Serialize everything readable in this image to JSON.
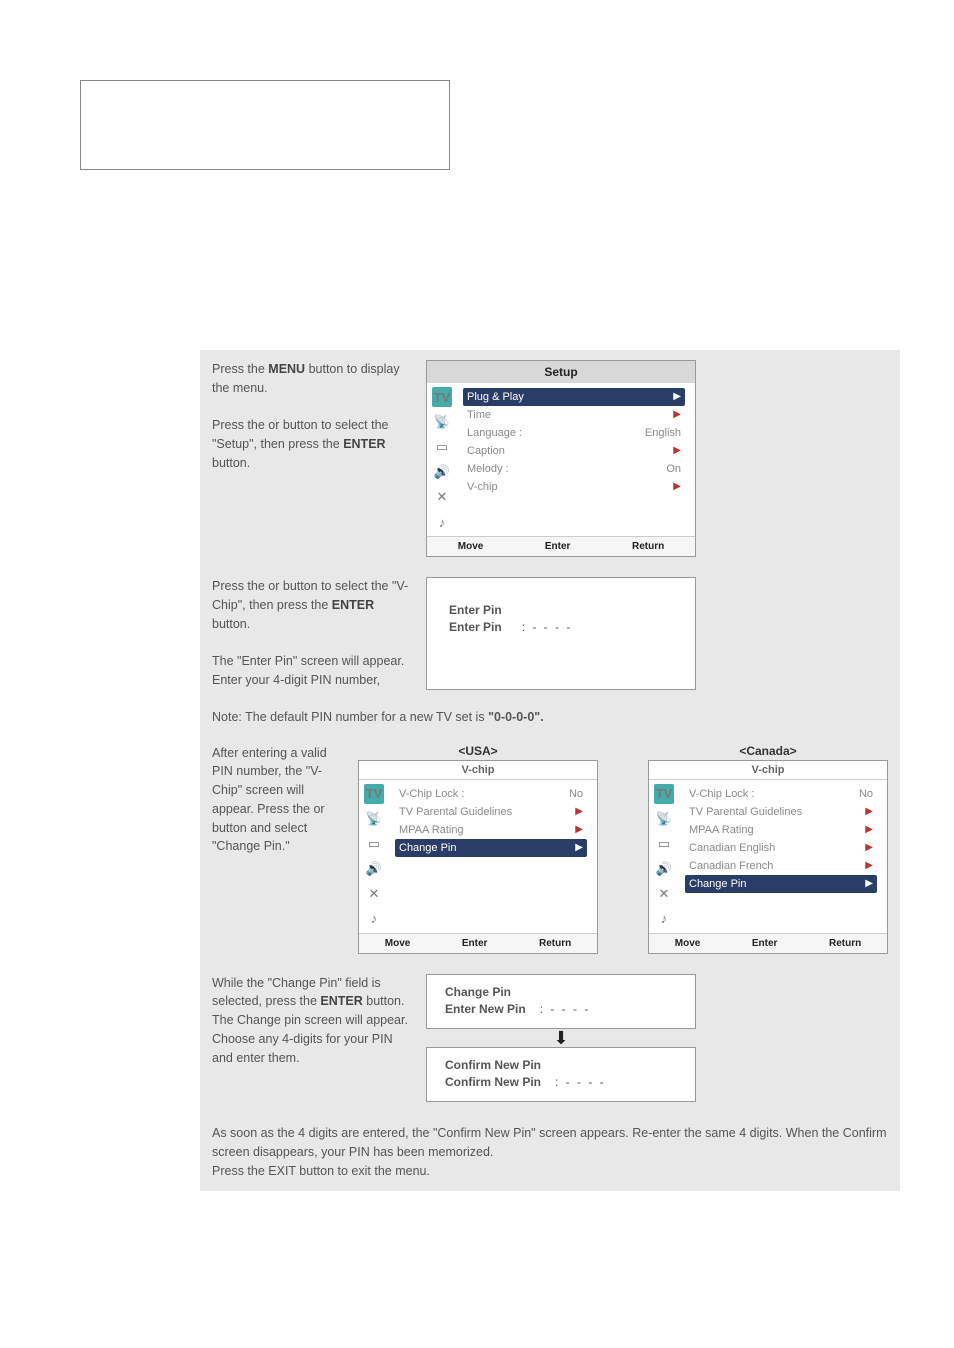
{
  "step1": {
    "instr_a": "Press the ",
    "menu_word": "MENU",
    "instr_a2": " button to display the menu.",
    "instr_b": "Press the  or  button to select the \"Setup\", then press the ",
    "enter_word": "ENTER",
    "instr_b2": " button."
  },
  "setup_osd": {
    "title": "Setup",
    "rows": [
      {
        "label": "Plug & Play",
        "value": "",
        "sel": true,
        "arrow": "▶"
      },
      {
        "label": "Time",
        "value": "",
        "arrow": "▶"
      },
      {
        "label": "Language :",
        "value": "English"
      },
      {
        "label": "Caption",
        "value": "",
        "arrow": "▶"
      },
      {
        "label": "Melody   :",
        "value": "On"
      },
      {
        "label": "V-chip",
        "value": "",
        "arrow": "▶"
      }
    ],
    "footer": [
      "Move",
      "Enter",
      "Return"
    ]
  },
  "step2": {
    "instr": "Press the  or  button to select  the \"V-Chip\", then press the ",
    "enter_word": "ENTER",
    "instr2": " button.",
    "para2": "The \"Enter Pin\" screen will appear. Enter your 4-digit PIN number,"
  },
  "pin1": {
    "line1": "Enter Pin",
    "line2": "Enter Pin",
    "dots": ": - - - -"
  },
  "note": {
    "pre": "Note: The default PIN number for a new TV set is ",
    "bold": "\"0-0-0-0\"."
  },
  "step3": {
    "instr": "After entering a valid PIN number, the \"V-Chip\" screen will appear.                 Press the  or  button and select \"Change Pin.\""
  },
  "usa_label": "<USA>",
  "canada_label": "<Canada>",
  "vchip_osd": {
    "title": "V-chip",
    "rows": [
      {
        "label": "V-Chip Lock       :",
        "value": "No"
      },
      {
        "label": "TV Parental Guidelines",
        "value": "",
        "arrow": "▶"
      },
      {
        "label": "MPAA Rating",
        "value": "",
        "arrow": "▶"
      },
      {
        "label": "Change Pin",
        "value": "",
        "sel": true,
        "arrow": "▶"
      }
    ],
    "footer": [
      "Move",
      "Enter",
      "Return"
    ]
  },
  "vchip_can": {
    "title": "V-chip",
    "rows": [
      {
        "label": "V-Chip Lock       :",
        "value": "No"
      },
      {
        "label": "TV Parental Guidelines",
        "value": "",
        "arrow": "▶"
      },
      {
        "label": "MPAA Rating",
        "value": "",
        "arrow": "▶"
      },
      {
        "label": "Canadian English",
        "value": "",
        "arrow": "▶"
      },
      {
        "label": "Canadian French",
        "value": "",
        "arrow": "▶"
      },
      {
        "label": "Change Pin",
        "value": "",
        "sel": true,
        "arrow": "▶"
      }
    ],
    "footer": [
      "Move",
      "Enter",
      "Return"
    ]
  },
  "step4": {
    "instr1": "While the \"Change Pin\" field is selected, press the ",
    "enter_word": "ENTER",
    "instr1b": " button.",
    "instr2": "The Change pin screen will appear. Choose any 4-digits for your PIN and enter them."
  },
  "change_box": {
    "title": "Change Pin",
    "row": "Enter New Pin",
    "dots": ": - - - -"
  },
  "confirm_box": {
    "title": "Confirm New Pin",
    "row": "Confirm New Pin",
    "dots": ": - - - -"
  },
  "follow": "As soon as the 4 digits are entered, the \"Confirm New Pin\" screen appears. Re-enter the same 4 digits. When the Confirm screen disappears, your PIN has been memorized.\nPress the EXIT button to exit the menu.",
  "icons": {
    "tv": "TV",
    "antenna": "📡",
    "screen": "▭",
    "speaker": "🔊",
    "x": "✕",
    "equalizer": "♪"
  }
}
